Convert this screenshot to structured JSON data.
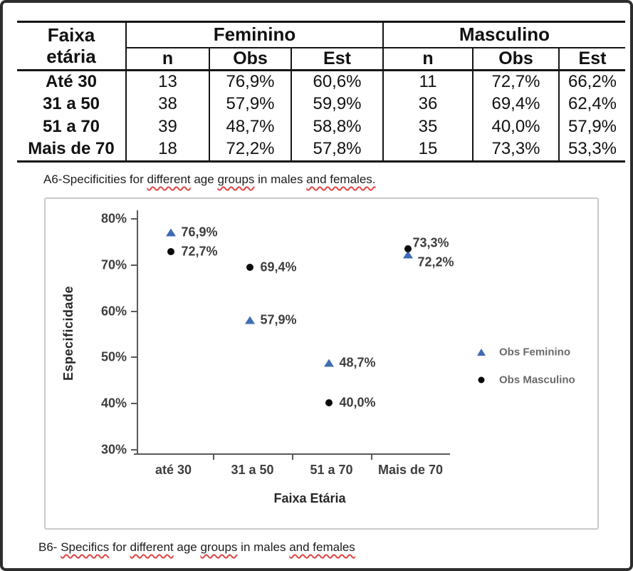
{
  "colors": {
    "feminino_blue": "#3f6cb4",
    "masculino_black": "#0a0a0a",
    "squiggle_red": "#e04545",
    "axis_gray": "#595959"
  },
  "table": {
    "corner_header_line1": "Faixa",
    "corner_header_line2": "etária",
    "group_headers": [
      "Feminino",
      "Masculino"
    ],
    "sub_headers": [
      "n",
      "Obs",
      "Est",
      "n",
      "Obs",
      "Est"
    ],
    "rows": [
      {
        "label": "Até 30",
        "values": [
          "13",
          "76,9%",
          "60,6%",
          "11",
          "72,7%",
          "66,2%"
        ]
      },
      {
        "label": "31 a 50",
        "values": [
          "38",
          "57,9%",
          "59,9%",
          "36",
          "69,4%",
          "62,4%"
        ]
      },
      {
        "label": "51 a 70",
        "values": [
          "39",
          "48,7%",
          "58,8%",
          "35",
          "40,0%",
          "57,9%"
        ]
      },
      {
        "label": "Mais de 70",
        "values": [
          "18",
          "72,2%",
          "57,8%",
          "15",
          "73,3%",
          "53,3%"
        ]
      }
    ]
  },
  "caption_top": {
    "segments": [
      {
        "text": "A6-Specificities for ",
        "squiggle": false
      },
      {
        "text": "different",
        "squiggle": true
      },
      {
        "text": " age ",
        "squiggle": false
      },
      {
        "text": "groups",
        "squiggle": true
      },
      {
        "text": " in males ",
        "squiggle": false
      },
      {
        "text": "and females.",
        "squiggle": true
      }
    ]
  },
  "caption_bottom": {
    "segments": [
      {
        "text": "B6- ",
        "squiggle": false
      },
      {
        "text": "Specifics",
        "squiggle": true
      },
      {
        "text": " for ",
        "squiggle": false
      },
      {
        "text": "different",
        "squiggle": true
      },
      {
        "text": " age ",
        "squiggle": false
      },
      {
        "text": "groups",
        "squiggle": true
      },
      {
        "text": " in males ",
        "squiggle": false
      },
      {
        "text": "and females",
        "squiggle": true
      }
    ]
  },
  "chart_data": {
    "type": "scatter",
    "categories": [
      "até 30",
      "31 a 50",
      "51 a 70",
      "Mais de 70"
    ],
    "series": [
      {
        "name": "Obs Feminino",
        "marker": "triangle",
        "color": "#3f6cb4",
        "values": [
          76.9,
          57.9,
          48.7,
          72.2
        ],
        "labels": [
          "76,9%",
          "57,9%",
          "48,7%",
          "72,2%"
        ],
        "label_offsets": [
          [
            15,
            0
          ],
          [
            15,
            0
          ],
          [
            15,
            0
          ],
          [
            14,
            11
          ]
        ]
      },
      {
        "name": "Obs Masculino",
        "marker": "circle",
        "color": "#0a0a0a",
        "values": [
          72.7,
          69.4,
          40.0,
          73.3
        ],
        "labels": [
          "72,7%",
          "69,4%",
          "40,0%",
          "73,3%"
        ],
        "label_offsets": [
          [
            15,
            0
          ],
          [
            15,
            0
          ],
          [
            15,
            0
          ],
          [
            7,
            -8
          ]
        ]
      }
    ],
    "title": "",
    "xlabel": "Faixa Etária",
    "ylabel": "Especificidade",
    "y_ticks": [
      80,
      70,
      60,
      50,
      40,
      30
    ],
    "y_tick_labels": [
      "80%",
      "70%",
      "60%",
      "50%",
      "40%",
      "30%"
    ],
    "ylim": [
      30,
      80
    ],
    "grid": false,
    "legend_position": "right"
  }
}
